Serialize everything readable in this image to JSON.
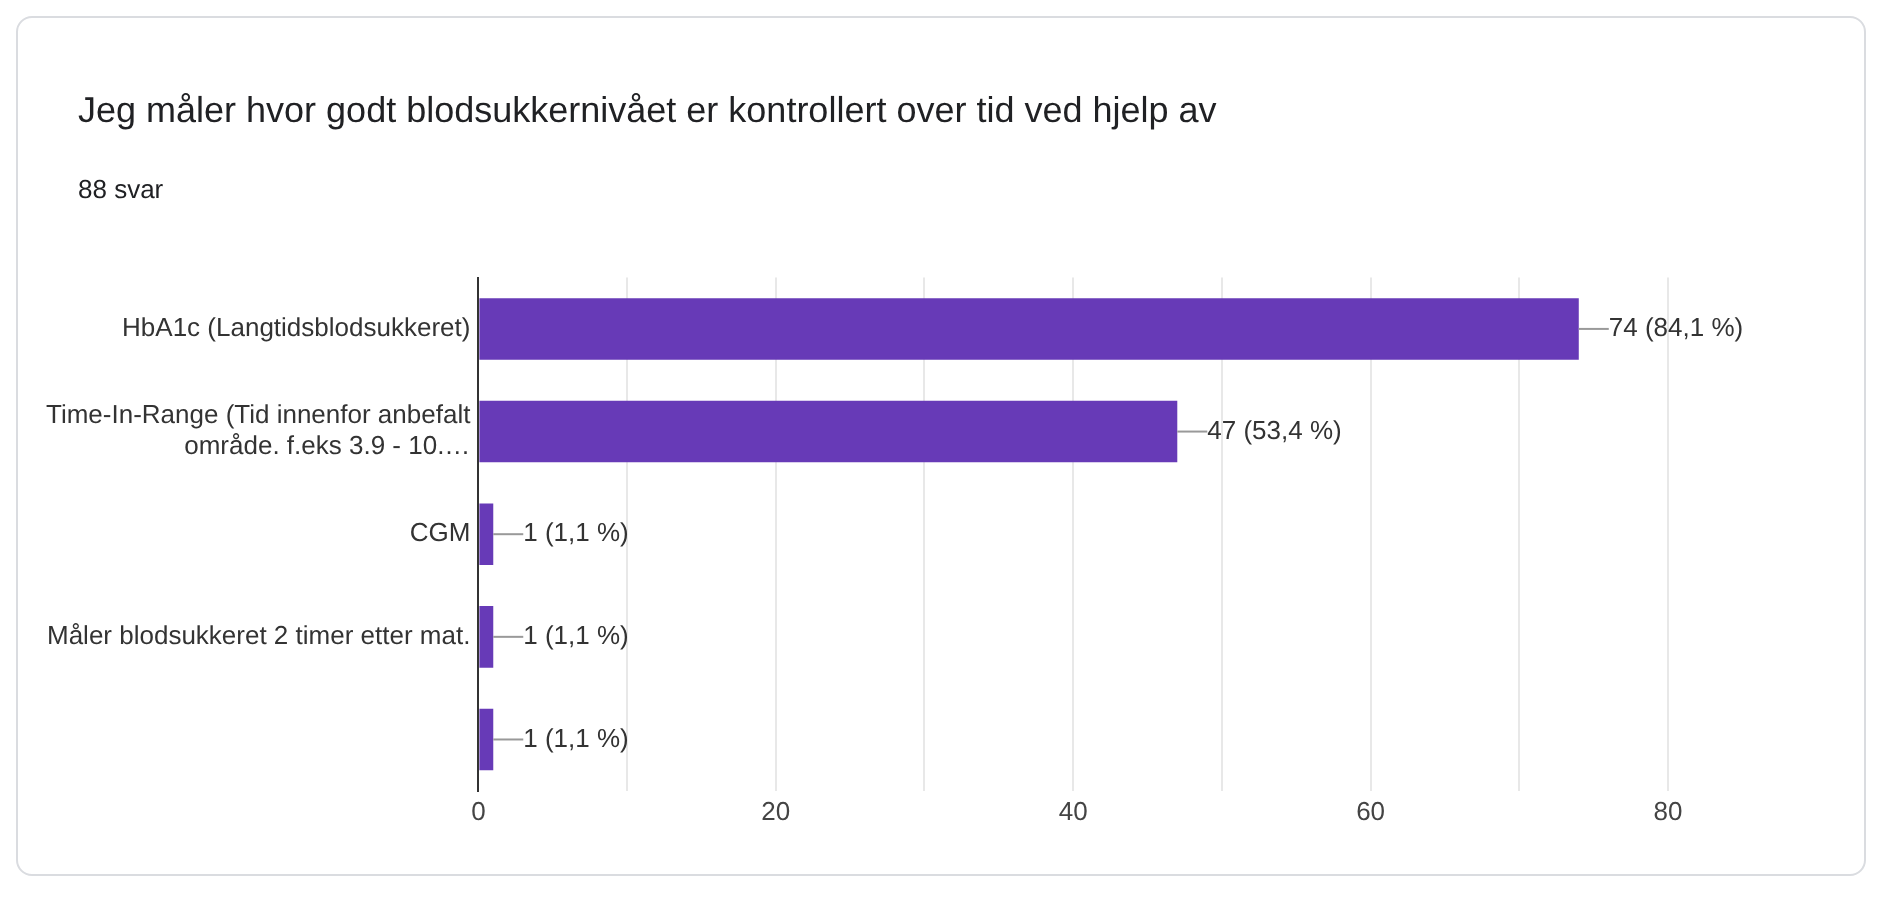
{
  "chart_data": {
    "type": "bar",
    "orientation": "horizontal",
    "title": "Jeg måler hvor godt blodsukkernivået er kontrollert over tid ved hjelp av",
    "subtitle": "88 svar",
    "categories": [
      "HbA1c (Langtidsblodsukkeret)",
      "Time-In-Range (Tid innenfor anbefalt område. f.eks 3.9 - 10.…",
      "CGM",
      "Måler blodsukkeret 2 timer etter mat.",
      null
    ],
    "values": [
      74,
      47,
      1,
      1,
      1
    ],
    "value_labels": [
      "74 (84,1 %)",
      "47 (53,4 %)",
      "1 (1,1 %)",
      "1 (1,1 %)",
      "1 (1,1 %)"
    ],
    "color": "#673ab7",
    "xlim": [
      0,
      80
    ],
    "xticks": [
      0,
      {
        "value": 10,
        "label": null
      },
      20,
      {
        "value": 30,
        "label": null
      },
      40,
      {
        "value": 50,
        "label": null
      },
      60,
      {
        "value": 70,
        "label": null
      },
      80
    ],
    "grid": "x",
    "legend": false
  }
}
